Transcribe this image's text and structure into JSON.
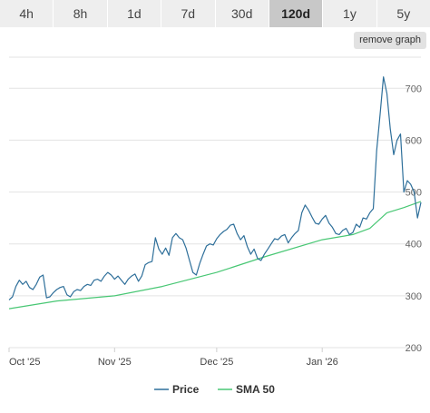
{
  "tabs": [
    {
      "label": "4h",
      "active": false
    },
    {
      "label": "8h",
      "active": false
    },
    {
      "label": "1d",
      "active": false
    },
    {
      "label": "7d",
      "active": false
    },
    {
      "label": "30d",
      "active": false
    },
    {
      "label": "120d",
      "active": true
    },
    {
      "label": "1y",
      "active": false
    },
    {
      "label": "5y",
      "active": false
    }
  ],
  "remove_graph_label": "remove graph",
  "colors": {
    "price": "#2e6f9a",
    "sma": "#48c774",
    "grid": "#e3e3e3"
  },
  "chart_data": {
    "type": "line",
    "title": "",
    "xlabel": "",
    "ylabel": "",
    "x_ticks": [
      "Oct '25",
      "Nov '25",
      "Dec '25",
      "Jan '26"
    ],
    "y_ticks": [
      200,
      300,
      400,
      500,
      600,
      700
    ],
    "ylim": [
      200,
      760
    ],
    "xlim": [
      "2025-10-01",
      "2026-01-30"
    ],
    "grid": true,
    "legend_position": "bottom",
    "series": [
      {
        "name": "Price",
        "color": "#2e6f9a",
        "points": [
          [
            "2025-10-01",
            292
          ],
          [
            "2025-10-02",
            298
          ],
          [
            "2025-10-03",
            318
          ],
          [
            "2025-10-04",
            330
          ],
          [
            "2025-10-05",
            322
          ],
          [
            "2025-10-06",
            328
          ],
          [
            "2025-10-07",
            316
          ],
          [
            "2025-10-08",
            312
          ],
          [
            "2025-10-09",
            322
          ],
          [
            "2025-10-10",
            336
          ],
          [
            "2025-10-11",
            340
          ],
          [
            "2025-10-12",
            296
          ],
          [
            "2025-10-13",
            298
          ],
          [
            "2025-10-14",
            306
          ],
          [
            "2025-10-15",
            312
          ],
          [
            "2025-10-16",
            316
          ],
          [
            "2025-10-17",
            318
          ],
          [
            "2025-10-18",
            302
          ],
          [
            "2025-10-19",
            298
          ],
          [
            "2025-10-20",
            308
          ],
          [
            "2025-10-21",
            312
          ],
          [
            "2025-10-22",
            310
          ],
          [
            "2025-10-23",
            318
          ],
          [
            "2025-10-24",
            322
          ],
          [
            "2025-10-25",
            320
          ],
          [
            "2025-10-26",
            330
          ],
          [
            "2025-10-27",
            332
          ],
          [
            "2025-10-28",
            328
          ],
          [
            "2025-10-29",
            338
          ],
          [
            "2025-10-30",
            345
          ],
          [
            "2025-10-31",
            340
          ],
          [
            "2025-11-01",
            332
          ],
          [
            "2025-11-02",
            338
          ],
          [
            "2025-11-03",
            330
          ],
          [
            "2025-11-04",
            322
          ],
          [
            "2025-11-05",
            332
          ],
          [
            "2025-11-06",
            338
          ],
          [
            "2025-11-07",
            342
          ],
          [
            "2025-11-08",
            328
          ],
          [
            "2025-11-09",
            338
          ],
          [
            "2025-11-10",
            360
          ],
          [
            "2025-11-11",
            364
          ],
          [
            "2025-11-12",
            366
          ],
          [
            "2025-11-13",
            412
          ],
          [
            "2025-11-14",
            390
          ],
          [
            "2025-11-15",
            380
          ],
          [
            "2025-11-16",
            392
          ],
          [
            "2025-11-17",
            378
          ],
          [
            "2025-11-18",
            412
          ],
          [
            "2025-11-19",
            420
          ],
          [
            "2025-11-20",
            412
          ],
          [
            "2025-11-21",
            408
          ],
          [
            "2025-11-22",
            392
          ],
          [
            "2025-11-23",
            368
          ],
          [
            "2025-11-24",
            345
          ],
          [
            "2025-11-25",
            340
          ],
          [
            "2025-11-26",
            362
          ],
          [
            "2025-11-27",
            380
          ],
          [
            "2025-11-28",
            396
          ],
          [
            "2025-11-29",
            400
          ],
          [
            "2025-11-30",
            398
          ],
          [
            "2025-12-01",
            410
          ],
          [
            "2025-12-02",
            418
          ],
          [
            "2025-12-03",
            424
          ],
          [
            "2025-12-04",
            428
          ],
          [
            "2025-12-05",
            436
          ],
          [
            "2025-12-06",
            438
          ],
          [
            "2025-12-07",
            420
          ],
          [
            "2025-12-08",
            408
          ],
          [
            "2025-12-09",
            416
          ],
          [
            "2025-12-10",
            395
          ],
          [
            "2025-12-11",
            380
          ],
          [
            "2025-12-12",
            390
          ],
          [
            "2025-12-13",
            372
          ],
          [
            "2025-12-14",
            368
          ],
          [
            "2025-12-15",
            380
          ],
          [
            "2025-12-16",
            390
          ],
          [
            "2025-12-17",
            400
          ],
          [
            "2025-12-18",
            410
          ],
          [
            "2025-12-19",
            408
          ],
          [
            "2025-12-20",
            415
          ],
          [
            "2025-12-21",
            418
          ],
          [
            "2025-12-22",
            402
          ],
          [
            "2025-12-23",
            412
          ],
          [
            "2025-12-24",
            420
          ],
          [
            "2025-12-25",
            426
          ],
          [
            "2025-12-26",
            460
          ],
          [
            "2025-12-27",
            475
          ],
          [
            "2025-12-28",
            465
          ],
          [
            "2025-12-29",
            452
          ],
          [
            "2025-12-30",
            440
          ],
          [
            "2025-12-31",
            438
          ],
          [
            "2026-01-01",
            448
          ],
          [
            "2026-01-02",
            455
          ],
          [
            "2026-01-03",
            440
          ],
          [
            "2026-01-04",
            432
          ],
          [
            "2026-01-05",
            420
          ],
          [
            "2026-01-06",
            418
          ],
          [
            "2026-01-07",
            426
          ],
          [
            "2026-01-08",
            430
          ],
          [
            "2026-01-09",
            418
          ],
          [
            "2026-01-10",
            422
          ],
          [
            "2026-01-11",
            438
          ],
          [
            "2026-01-12",
            432
          ],
          [
            "2026-01-13",
            450
          ],
          [
            "2026-01-14",
            448
          ],
          [
            "2026-01-15",
            460
          ],
          [
            "2026-01-16",
            468
          ],
          [
            "2026-01-17",
            580
          ],
          [
            "2026-01-18",
            650
          ],
          [
            "2026-01-19",
            722
          ],
          [
            "2026-01-20",
            690
          ],
          [
            "2026-01-21",
            622
          ],
          [
            "2026-01-22",
            572
          ],
          [
            "2026-01-23",
            600
          ],
          [
            "2026-01-24",
            612
          ],
          [
            "2026-01-25",
            500
          ],
          [
            "2026-01-26",
            522
          ],
          [
            "2026-01-27",
            515
          ],
          [
            "2026-01-28",
            500
          ],
          [
            "2026-01-29",
            450
          ],
          [
            "2026-01-30",
            480
          ]
        ]
      },
      {
        "name": "SMA 50",
        "color": "#48c774",
        "points": [
          [
            "2025-10-01",
            275
          ],
          [
            "2025-10-15",
            290
          ],
          [
            "2025-11-01",
            300
          ],
          [
            "2025-11-15",
            318
          ],
          [
            "2025-12-01",
            345
          ],
          [
            "2025-12-15",
            375
          ],
          [
            "2026-01-01",
            408
          ],
          [
            "2026-01-10",
            418
          ],
          [
            "2026-01-15",
            430
          ],
          [
            "2026-01-20",
            460
          ],
          [
            "2026-01-25",
            470
          ],
          [
            "2026-01-30",
            482
          ]
        ]
      }
    ]
  }
}
